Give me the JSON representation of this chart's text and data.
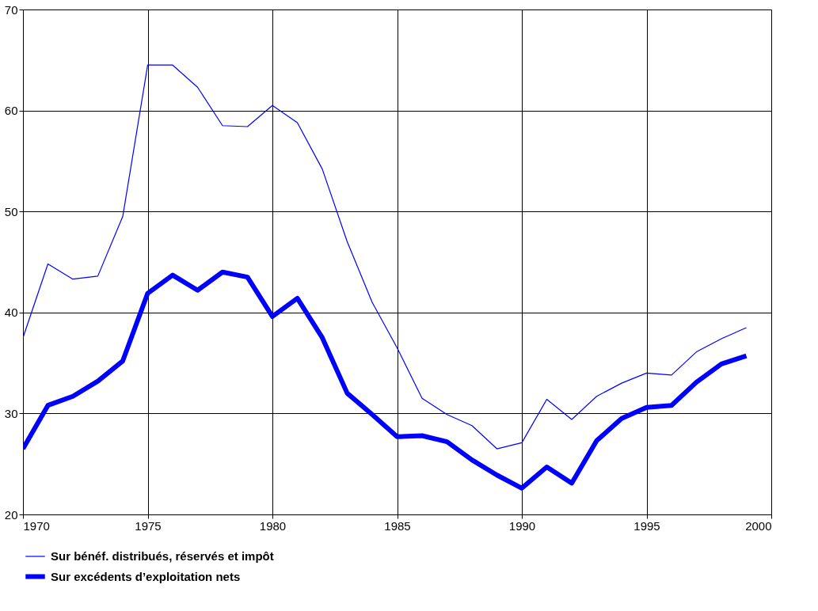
{
  "chart_data": {
    "type": "line",
    "x": [
      1970,
      1971,
      1972,
      1973,
      1974,
      1975,
      1976,
      1977,
      1978,
      1979,
      1980,
      1981,
      1982,
      1983,
      1984,
      1985,
      1986,
      1987,
      1988,
      1989,
      1990,
      1991,
      1992,
      1993,
      1994,
      1995,
      1996,
      1997,
      1998,
      1999
    ],
    "series": [
      {
        "name": "Sur bénéf. distribués, réservés et impôt",
        "color": "#0000ff",
        "values": [
          37.5,
          44.8,
          43.3,
          43.6,
          49.5,
          64.5,
          64.5,
          62.3,
          58.5,
          58.4,
          60.5,
          58.8,
          54.2,
          47.0,
          41.0,
          36.5,
          31.5,
          29.9,
          28.8,
          26.5,
          27.1,
          31.4,
          29.4,
          31.7,
          33.0,
          34.0,
          33.8,
          36.1,
          37.4,
          38.5
        ]
      },
      {
        "name": "Sur excédents d’exploitation nets",
        "color": "#0000ff",
        "values": [
          26.5,
          30.8,
          31.7,
          33.2,
          35.2,
          41.9,
          43.7,
          42.2,
          44.0,
          43.5,
          39.6,
          41.4,
          37.5,
          32.0,
          29.9,
          27.7,
          27.8,
          27.2,
          25.4,
          23.9,
          22.6,
          24.7,
          23.1,
          27.3,
          29.5,
          30.6,
          30.8,
          33.1,
          34.9,
          35.7
        ]
      }
    ],
    "xlim": [
      1970,
      2000
    ],
    "xticks": [
      1970,
      1975,
      1980,
      1985,
      1990,
      1995,
      2000
    ],
    "ylim": [
      20,
      70
    ],
    "yticks": [
      20,
      30,
      40,
      50,
      60,
      70
    ],
    "grid": true,
    "legend": "bottom left",
    "marker": "none",
    "line_style": "solid"
  }
}
